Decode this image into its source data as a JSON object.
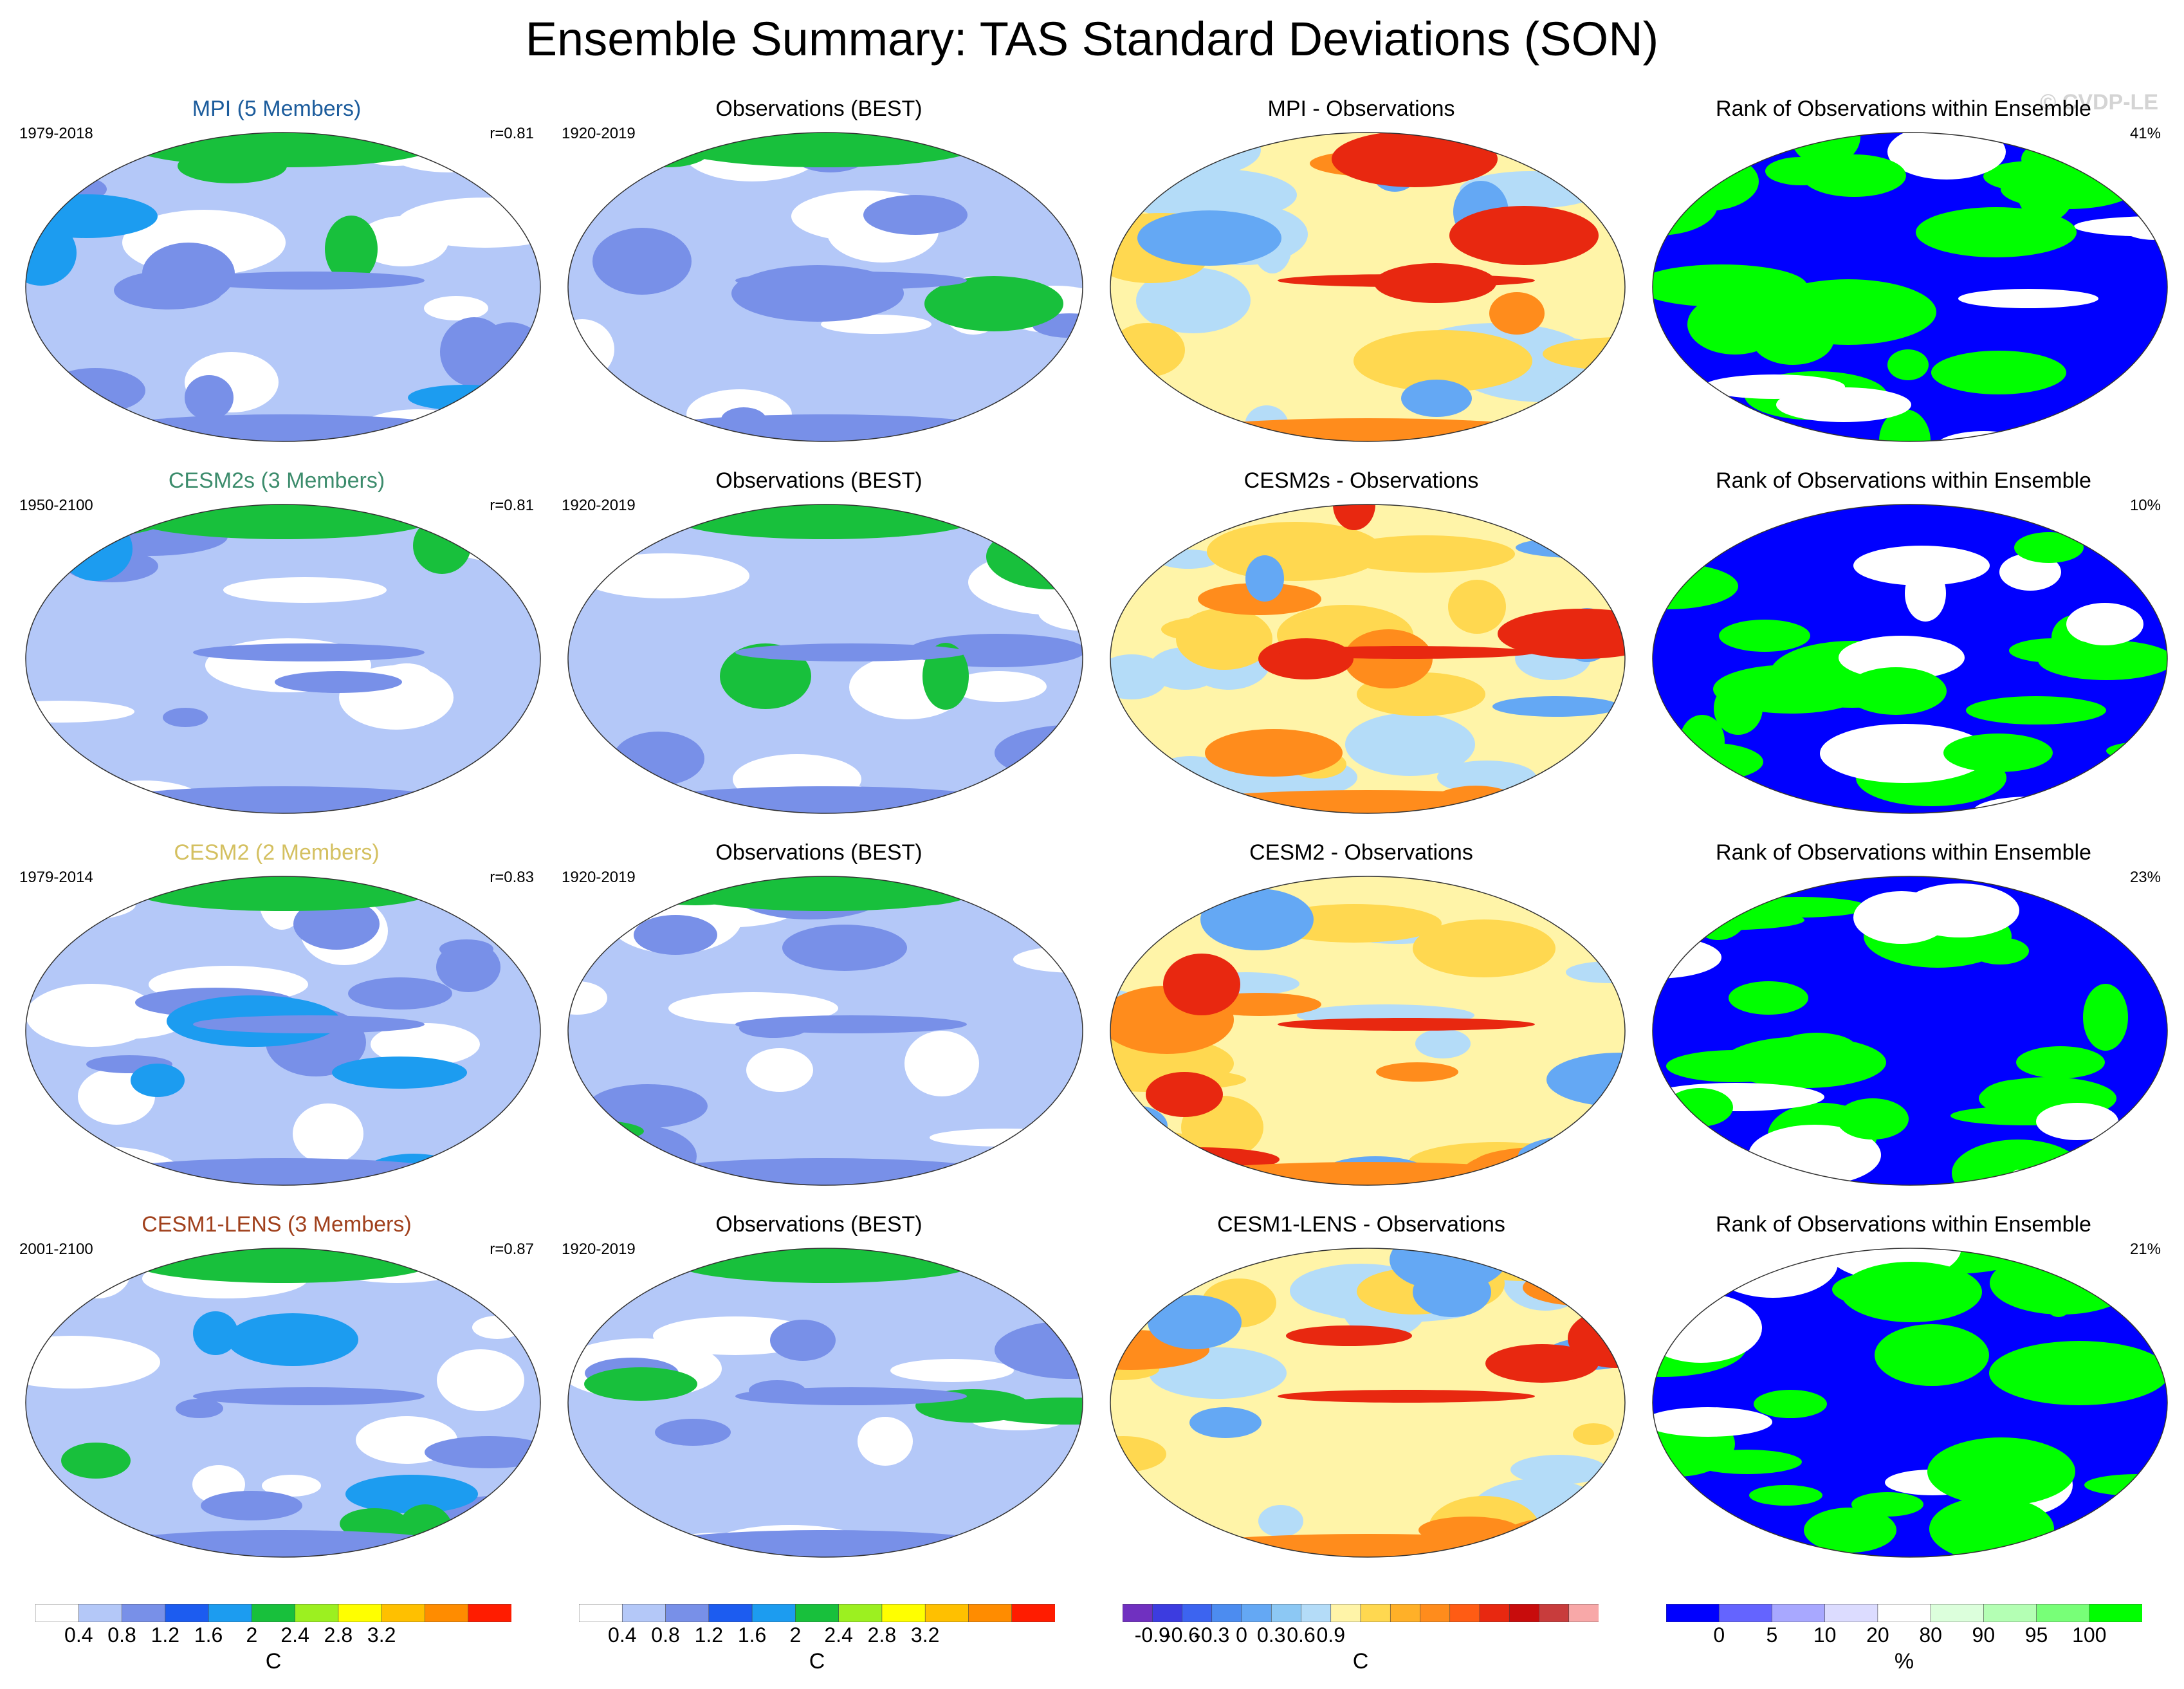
{
  "page_title": "Ensemble Summary: TAS Standard Deviations (SON)",
  "watermark": "© CVDP-LE",
  "rows": [
    {
      "model": {
        "title": "MPI (5 Members)",
        "color": "#1c5c9c",
        "period": "1979-2018",
        "r": "r=0.81"
      },
      "obs": {
        "title": "Observations (BEST)",
        "period": "1920-2019"
      },
      "diff": {
        "title": "MPI - Observations"
      },
      "rank": {
        "title": "Rank of Observations within Ensemble",
        "pct": "41%"
      }
    },
    {
      "model": {
        "title": "CESM2s (3 Members)",
        "color": "#3c8c6c",
        "period": "1950-2100",
        "r": "r=0.81"
      },
      "obs": {
        "title": "Observations (BEST)",
        "period": "1920-2019"
      },
      "diff": {
        "title": "CESM2s - Observations"
      },
      "rank": {
        "title": "Rank of Observations within Ensemble",
        "pct": "10%"
      }
    },
    {
      "model": {
        "title": "CESM2 (2 Members)",
        "color": "#d4c060",
        "period": "1979-2014",
        "r": "r=0.83"
      },
      "obs": {
        "title": "Observations (BEST)",
        "period": "1920-2019"
      },
      "diff": {
        "title": "CESM2 - Observations"
      },
      "rank": {
        "title": "Rank of Observations within Ensemble",
        "pct": "23%"
      }
    },
    {
      "model": {
        "title": "CESM1-LENS (3 Members)",
        "color": "#a0401c",
        "period": "2001-2100",
        "r": "r=0.87"
      },
      "obs": {
        "title": "Observations (BEST)",
        "period": "1920-2019"
      },
      "diff": {
        "title": "CESM1-LENS - Observations"
      },
      "rank": {
        "title": "Rank of Observations within Ensemble",
        "pct": "21%"
      }
    }
  ],
  "colorbars": [
    {
      "name": "stddev-model",
      "unit": "C",
      "colors": [
        "#ffffff",
        "#b4c8f8",
        "#7890e8",
        "#1c5cf0",
        "#1c9cf0",
        "#18c03c",
        "#9cf020",
        "#ffff00",
        "#ffc000",
        "#ff8c00",
        "#ff1c00"
      ],
      "ticks": [
        "0.4",
        "0.8",
        "1.2",
        "1.6",
        "2",
        "2.4",
        "2.8",
        "3.2"
      ]
    },
    {
      "name": "stddev-obs",
      "unit": "C",
      "colors": [
        "#ffffff",
        "#b4c8f8",
        "#7890e8",
        "#1c5cf0",
        "#1c9cf0",
        "#18c03c",
        "#9cf020",
        "#ffff00",
        "#ffc000",
        "#ff8c00",
        "#ff1c00"
      ],
      "ticks": [
        "0.4",
        "0.8",
        "1.2",
        "1.6",
        "2",
        "2.4",
        "2.8",
        "3.2"
      ]
    },
    {
      "name": "difference",
      "unit": "C",
      "colors": [
        "#7030c0",
        "#3c3ce0",
        "#3c64f0",
        "#4c8cf0",
        "#64a8f4",
        "#8cc8f4",
        "#b4dcf8",
        "#fff4a8",
        "#ffd850",
        "#ffb028",
        "#ff8c1c",
        "#ff5c14",
        "#e82810",
        "#c80c0c",
        "#c83c3c",
        "#f8a8a8"
      ],
      "ticks": [
        "-0.9",
        "-0.6",
        "-0.3",
        "0",
        "0.3",
        "0.6",
        "0.9"
      ]
    },
    {
      "name": "rank",
      "unit": "%",
      "colors": [
        "#0000ff",
        "#6464ff",
        "#a8a8ff",
        "#dcdcff",
        "#ffffff",
        "#dcffdc",
        "#b4ffb4",
        "#78ff78",
        "#00ff00"
      ],
      "ticks": [
        "0",
        "5",
        "10",
        "20",
        "80",
        "90",
        "95",
        "100"
      ]
    }
  ]
}
